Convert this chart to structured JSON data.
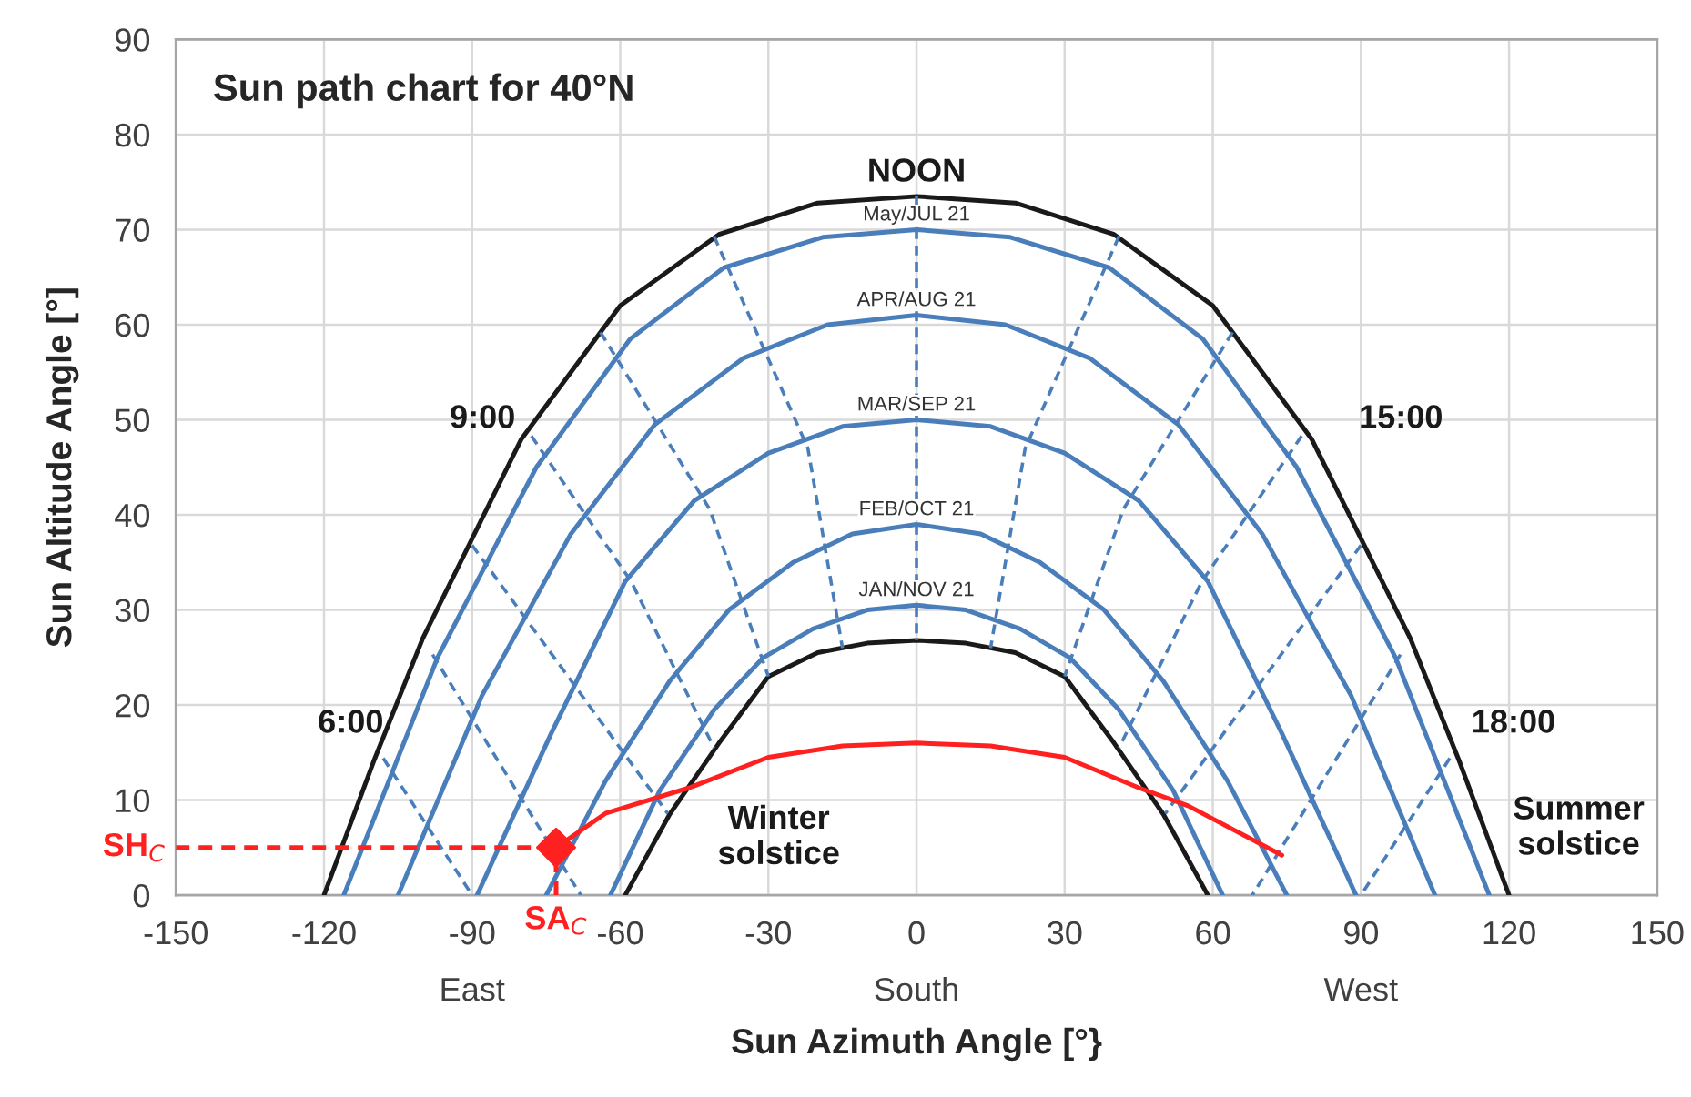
{
  "chart_data": {
    "type": "line",
    "title": "Sun path chart for 40°N",
    "xlabel": "Sun Azimuth Angle [°}",
    "ylabel": "Sun Altitude Angle [°]",
    "xlim": [
      -150,
      150
    ],
    "ylim": [
      0,
      90
    ],
    "xticks": [
      -150,
      -120,
      {
        "value": -90,
        "label": "-90\n\nEast"
      },
      -60,
      -30,
      {
        "value": 0,
        "label": "0\n\nSouth"
      },
      30,
      60,
      {
        "value": 90,
        "label": "90\n\nWest"
      },
      120,
      150
    ],
    "yticks": [
      0,
      10,
      20,
      30,
      40,
      50,
      60,
      70,
      80,
      90
    ],
    "grid": true,
    "series": [
      {
        "color": "#1a1a1a",
        "x": [
          -120,
          -110,
          -100,
          -80,
          -60,
          -40,
          -20,
          0,
          20,
          40,
          60,
          80,
          100,
          110,
          120
        ],
        "values": [
          0,
          14,
          27,
          48,
          62,
          69.5,
          72.8,
          73.5,
          72.8,
          69.5,
          62,
          48,
          27,
          14,
          0
        ]
      },
      {
        "name": "May/JUL 21",
        "color": "#4a7ebb",
        "x": [
          -116,
          -97,
          -77,
          -58,
          -39,
          -19,
          0,
          19,
          39,
          58,
          77,
          97,
          116
        ],
        "values": [
          0,
          25,
          45,
          58.5,
          66,
          69.2,
          70,
          69.2,
          66,
          58.5,
          45,
          25,
          0
        ]
      },
      {
        "name": "APR/AUG 21",
        "color": "#4a7ebb",
        "x": [
          -105,
          -88,
          -70,
          -53,
          -35,
          -18,
          0,
          18,
          35,
          53,
          70,
          88,
          105
        ],
        "values": [
          0,
          21,
          38,
          49.5,
          56.5,
          60,
          61,
          60,
          56.5,
          49.5,
          38,
          21,
          0
        ]
      },
      {
        "name": "MAR/SEP 21",
        "color": "#4a7ebb",
        "x": [
          -89,
          -74,
          -59,
          -45,
          -30,
          -15,
          0,
          15,
          30,
          45,
          59,
          74,
          89
        ],
        "values": [
          0,
          17,
          33,
          41.5,
          46.5,
          49.3,
          50,
          49.3,
          46.5,
          41.5,
          33,
          17,
          0
        ]
      },
      {
        "name": "FEB/OCT 21",
        "color": "#4a7ebb",
        "x": [
          -75,
          -63,
          -50,
          -38,
          -25,
          -13,
          0,
          13,
          25,
          38,
          50,
          63,
          75
        ],
        "values": [
          0,
          12,
          22.5,
          30,
          35,
          38,
          39,
          38,
          35,
          30,
          22.5,
          12,
          0
        ]
      },
      {
        "name": "JAN/NOV 21",
        "color": "#4a7ebb",
        "x": [
          -62,
          -52,
          -41,
          -31,
          -21,
          -10,
          0,
          10,
          21,
          31,
          41,
          52,
          62
        ],
        "values": [
          0,
          11,
          19.5,
          25,
          28,
          30,
          30.5,
          30,
          28,
          25,
          19.5,
          11,
          0
        ]
      },
      {
        "color": "#1a1a1a",
        "x": [
          -59,
          -50,
          -40,
          -30,
          -20,
          -10,
          0,
          10,
          20,
          30,
          40,
          50,
          59
        ],
        "values": [
          0,
          8.5,
          16,
          23,
          25.5,
          26.5,
          26.8,
          26.5,
          25.5,
          23,
          16,
          8.5,
          0
        ]
      },
      {
        "color": "#4a7ebb",
        "line_style": "dashed",
        "x": [
          -108,
          -90
        ],
        "values": [
          14.4,
          0
        ]
      },
      {
        "color": "#4a7ebb",
        "line_style": "dashed",
        "x": [
          -98,
          -68
        ],
        "values": [
          25.3,
          0
        ]
      },
      {
        "color": "#4a7ebb",
        "line_style": "dashed",
        "x": [
          -90,
          -70.3,
          -50.4
        ],
        "values": [
          36.8,
          22.8,
          8.6
        ]
      },
      {
        "color": "#4a7ebb",
        "line_style": "dashed",
        "x": [
          -78,
          -57.8,
          -41
        ],
        "values": [
          48.3,
          33,
          15.5
        ]
      },
      {
        "color": "#4a7ebb",
        "line_style": "dashed",
        "x": [
          -64,
          -41.9,
          -30
        ],
        "values": [
          59.2,
          40.6,
          23
        ]
      },
      {
        "color": "#4a7ebb",
        "line_style": "dashed",
        "x": [
          -41,
          -22,
          -15
        ],
        "values": [
          69.3,
          47,
          26
        ]
      },
      {
        "color": "#4a7ebb",
        "line_style": "dashed",
        "x": [
          0,
          0
        ],
        "values": [
          73.5,
          26.8
        ]
      },
      {
        "color": "#4a7ebb",
        "line_style": "dashed",
        "x": [
          41,
          22,
          15
        ],
        "values": [
          69.3,
          47,
          26
        ]
      },
      {
        "color": "#4a7ebb",
        "line_style": "dashed",
        "x": [
          64,
          41.9,
          30
        ],
        "values": [
          59.2,
          40.6,
          23
        ]
      },
      {
        "color": "#4a7ebb",
        "line_style": "dashed",
        "x": [
          78,
          57.8,
          41
        ],
        "values": [
          48.3,
          33,
          15.5
        ]
      },
      {
        "color": "#4a7ebb",
        "line_style": "dashed",
        "x": [
          90,
          70.3,
          50.4
        ],
        "values": [
          36.8,
          22.8,
          8.6
        ]
      },
      {
        "color": "#4a7ebb",
        "line_style": "dashed",
        "x": [
          98,
          68
        ],
        "values": [
          25.3,
          0
        ]
      },
      {
        "color": "#4a7ebb",
        "line_style": "dashed",
        "x": [
          108,
          90
        ],
        "values": [
          14.4,
          0
        ]
      },
      {
        "color": "#ff2020",
        "x": [
          -73,
          -63,
          -46,
          -30,
          -15,
          0,
          15,
          30,
          45,
          55,
          74
        ],
        "values": [
          5,
          8.6,
          11.3,
          14.5,
          15.7,
          16,
          15.7,
          14.5,
          11.3,
          9.4,
          4.2
        ]
      },
      {
        "type": "scatter",
        "marker": "diamond",
        "color": "#ff2020",
        "x": [
          -73
        ],
        "values": [
          5
        ]
      }
    ],
    "annotations": [
      "NOON",
      "6:00",
      "9:00",
      "15:00",
      "18:00",
      "Winter\nsolstice",
      "Summer\nsolstice",
      {
        "text": "SH$_{C}$",
        "x": -73,
        "y": 5
      },
      {
        "text": "SA$_{C}$",
        "x": -73,
        "y": 5
      }
    ]
  }
}
